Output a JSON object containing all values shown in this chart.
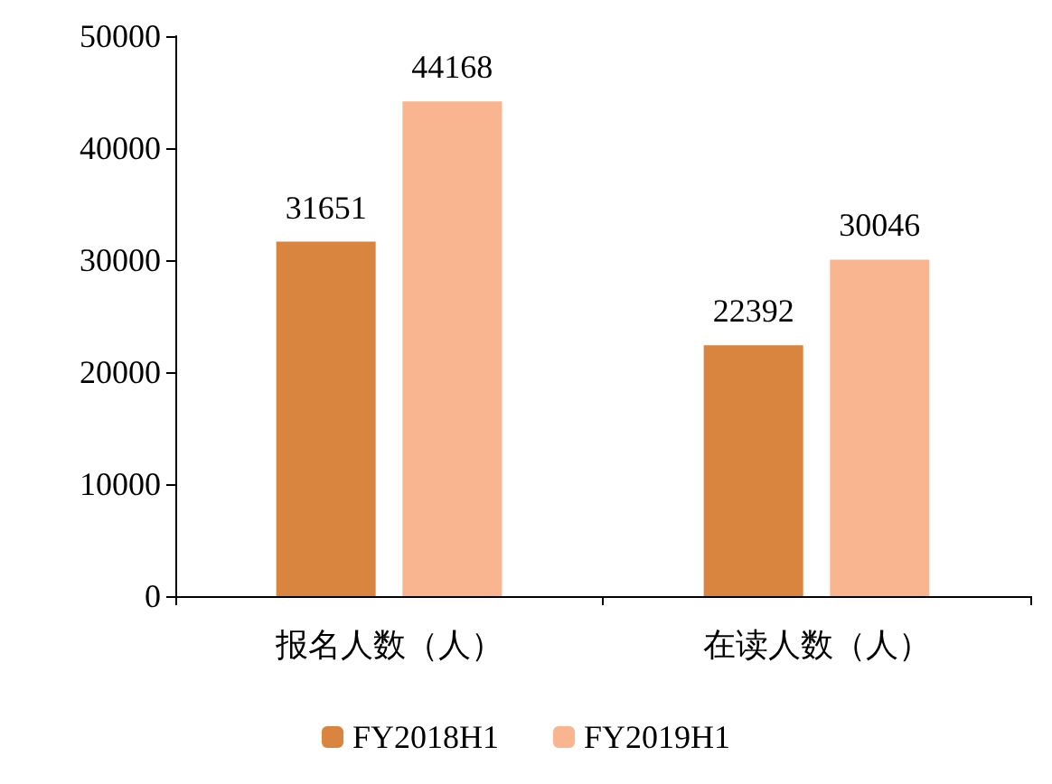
{
  "chart_data": {
    "type": "bar",
    "categories": [
      "报名人数（人）",
      "在读人数（人）"
    ],
    "series": [
      {
        "name": "FY2018H1",
        "color": "#d9843f",
        "values": [
          31651,
          22392
        ]
      },
      {
        "name": "FY2019H1",
        "color": "#f8b590",
        "values": [
          44168,
          30046
        ]
      }
    ],
    "ylim": [
      0,
      50000
    ],
    "yticks": [
      0,
      10000,
      20000,
      30000,
      40000,
      50000
    ],
    "data_labels": true,
    "legend": "bottom",
    "grid": false
  }
}
